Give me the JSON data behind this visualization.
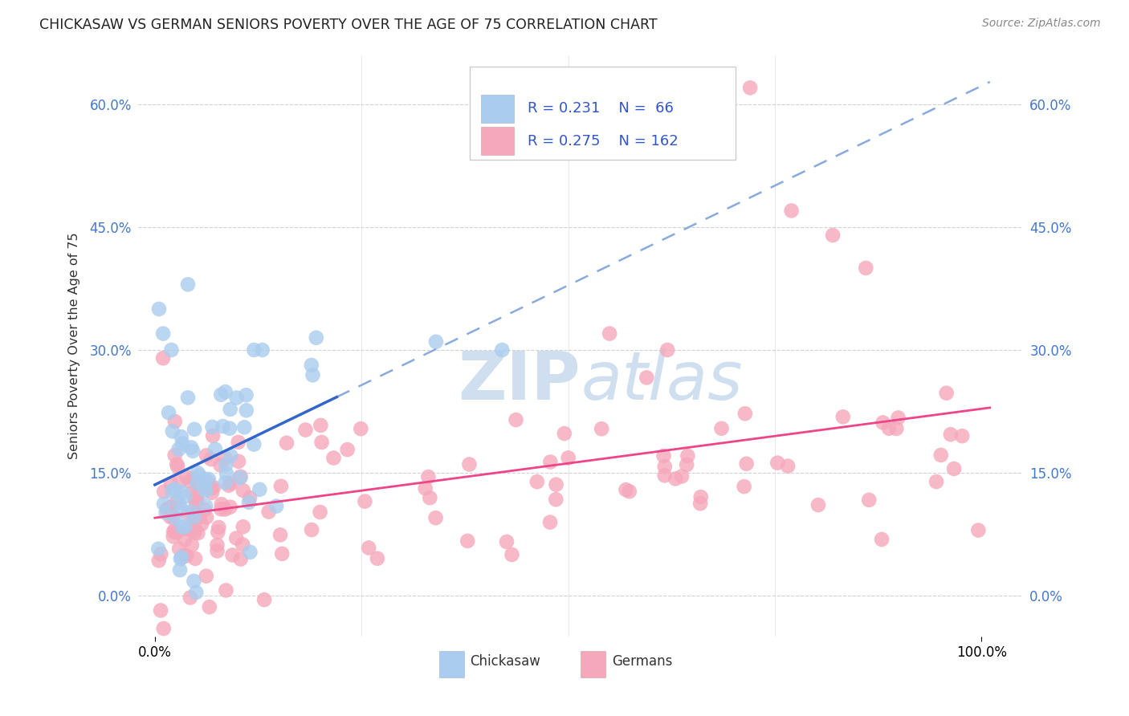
{
  "title": "CHICKASAW VS GERMAN SENIORS POVERTY OVER THE AGE OF 75 CORRELATION CHART",
  "source": "Source: ZipAtlas.com",
  "ylabel": "Seniors Poverty Over the Age of 75",
  "ytick_labels": [
    "0.0%",
    "15.0%",
    "30.0%",
    "45.0%",
    "60.0%"
  ],
  "ytick_values": [
    0.0,
    0.15,
    0.3,
    0.45,
    0.6
  ],
  "xlim": [
    -0.02,
    1.05
  ],
  "ylim": [
    -0.05,
    0.66
  ],
  "grid_color": "#cccccc",
  "background_color": "#ffffff",
  "chickasaw_color": "#aaccee",
  "german_color": "#f5a8bb",
  "trendline_blue_solid": "#3366cc",
  "trendline_blue_dashed": "#88aadd",
  "trendline_pink": "#ee4488",
  "watermark_color": "#d0dff0",
  "watermark_text": "ZIPAtlas",
  "legend_box_color": "#cccccc",
  "blue_trend_x_solid_end": 0.22,
  "blue_trend_start_y": 0.12,
  "blue_trend_slope": 0.52,
  "pink_trend_start_y": 0.1,
  "pink_trend_slope": 0.1
}
